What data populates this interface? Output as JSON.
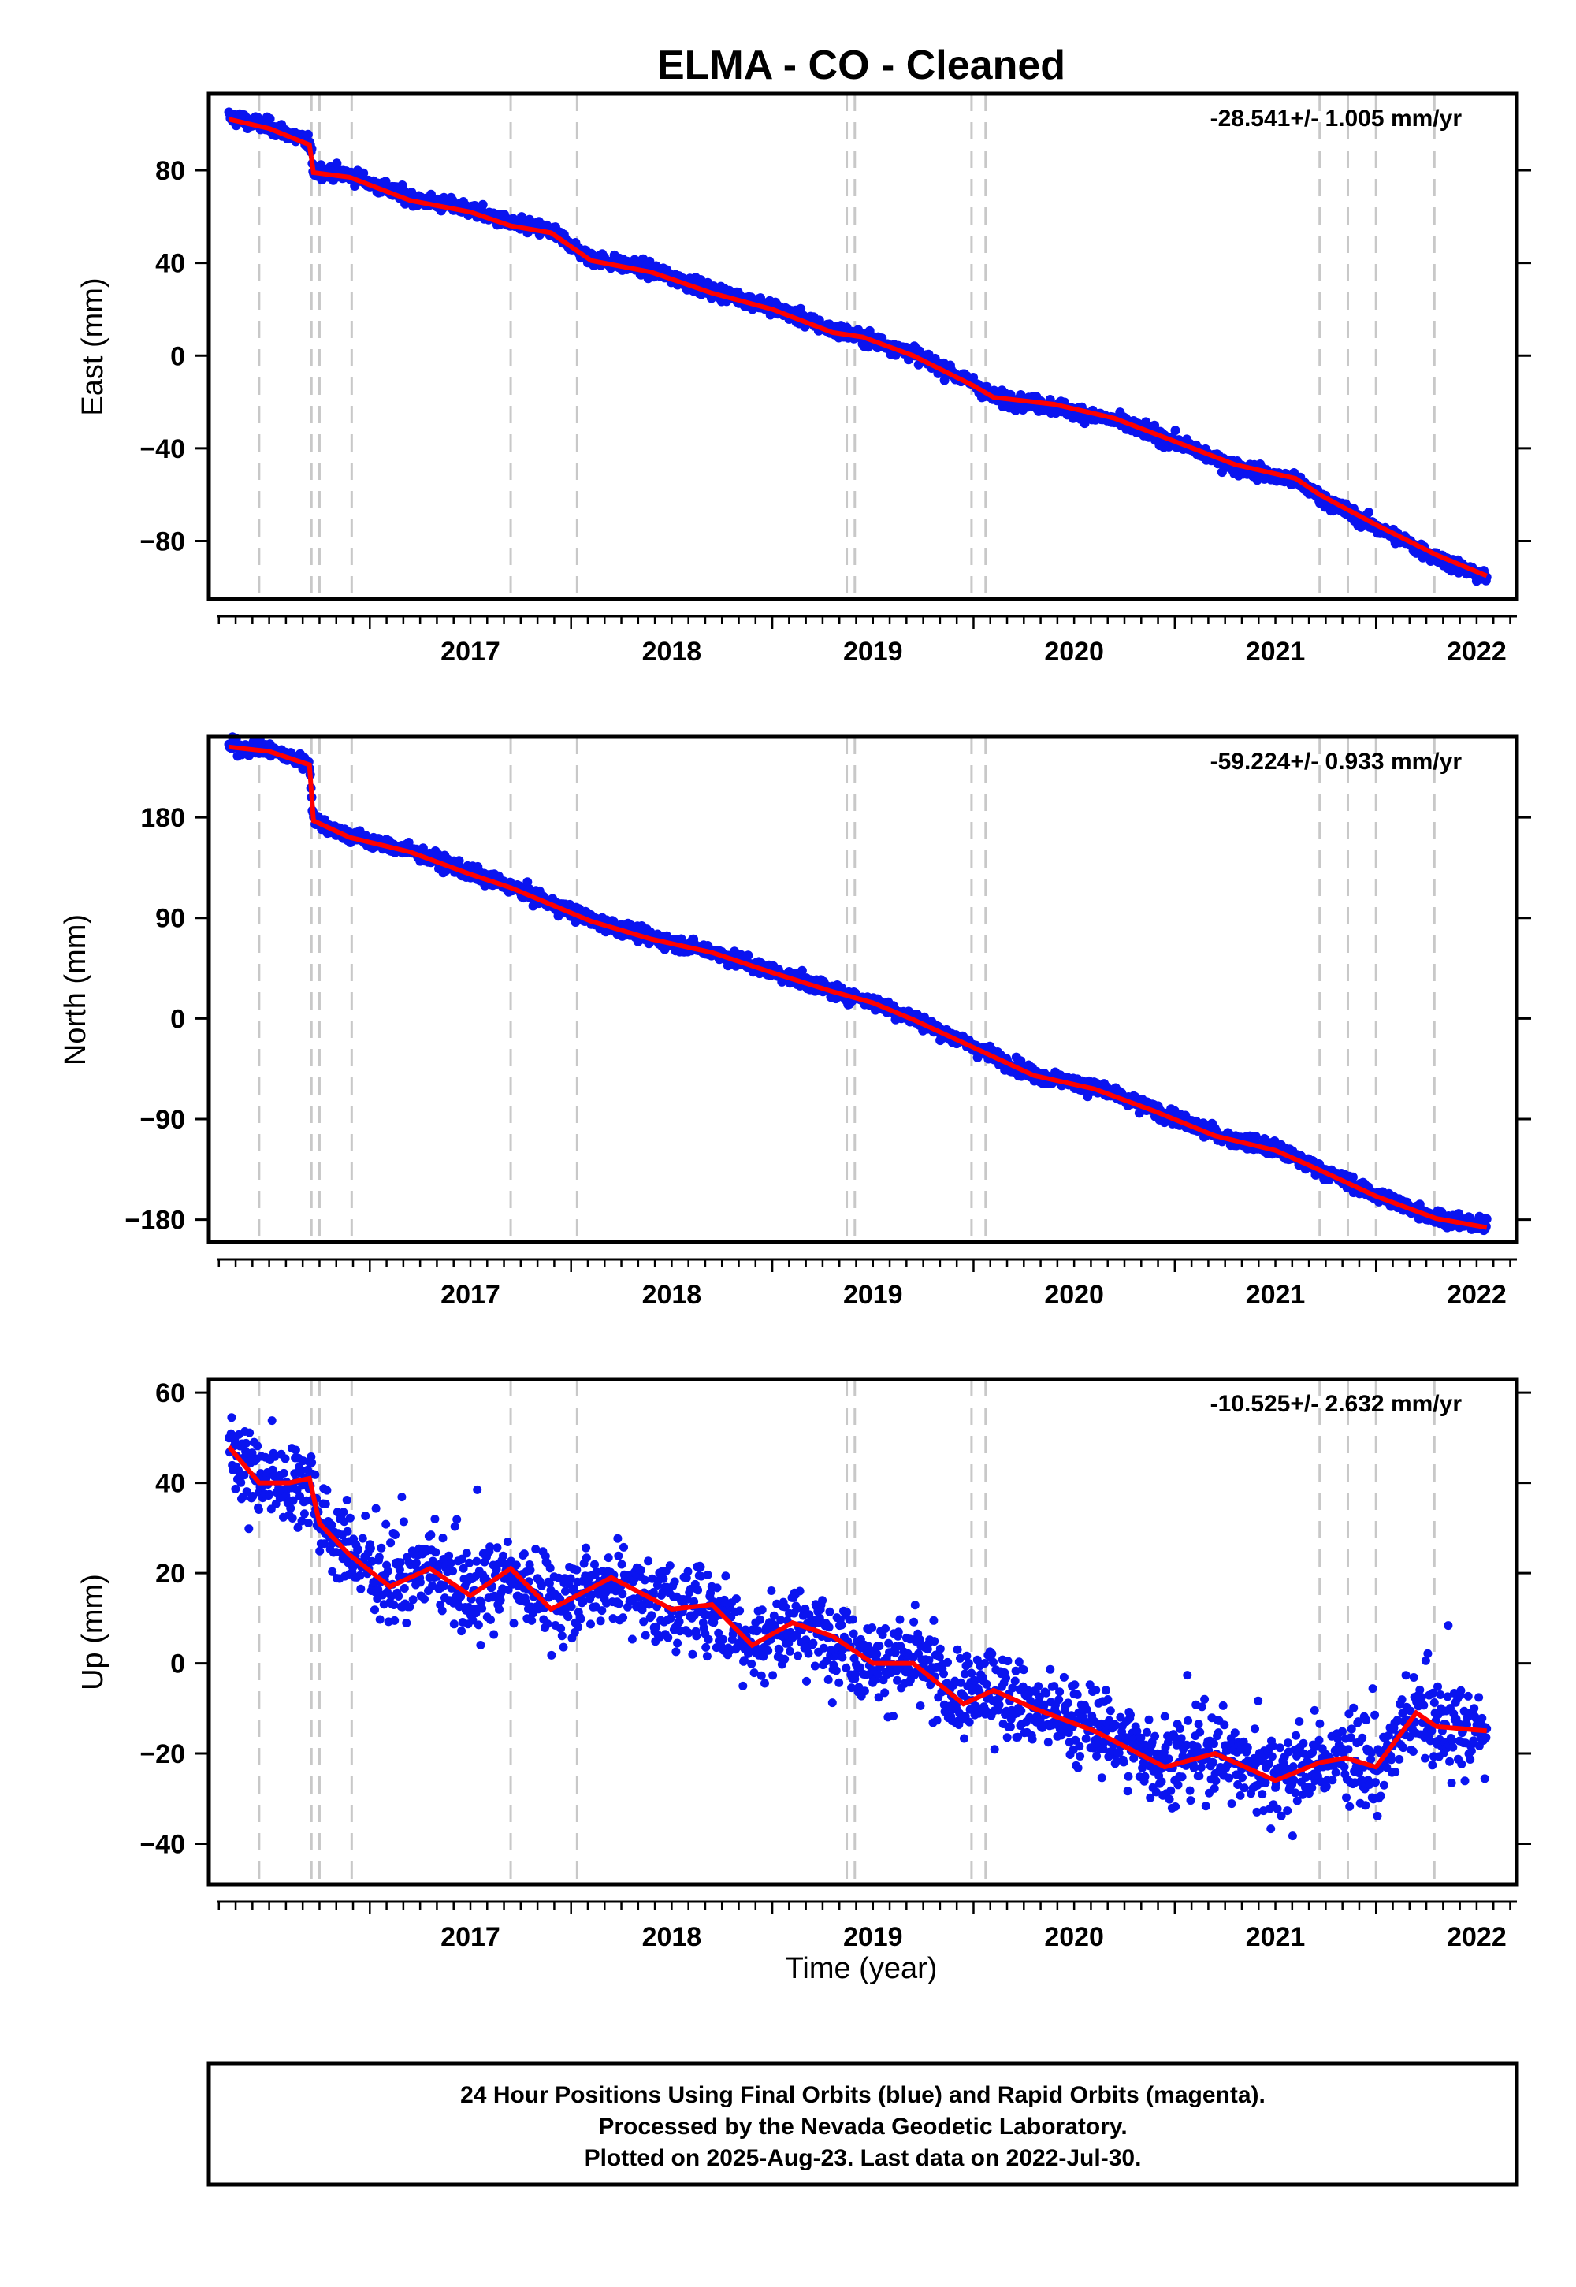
{
  "title": "ELMA  - CO - Cleaned",
  "chart_data": {
    "type": "scatter",
    "x_ticks": [
      2017,
      2018,
      2019,
      2020,
      2021,
      2022
    ],
    "xlim": [
      2016.2,
      2022.7
    ],
    "xlabel": "Time (year)",
    "vertical_markers": [
      2016.45,
      2016.71,
      2016.75,
      2016.91,
      2017.7,
      2018.03,
      2019.37,
      2019.41,
      2019.99,
      2020.06,
      2021.72,
      2021.86,
      2022.0,
      2022.29
    ],
    "colors": {
      "data": "#0a14f0",
      "model": "#ff0000",
      "marker": "#c8c8c8"
    },
    "panels": [
      {
        "ylabel": "East (mm)",
        "ylim": [
          -105,
          113
        ],
        "yticks": [
          80,
          40,
          0,
          -40,
          -80
        ],
        "rate": "-28.541+/- 1.005 mm/yr",
        "series": [
          {
            "name": "24 Hour Positions",
            "x": [
              2016.3,
              2016.5,
              2016.7,
              2016.72,
              2016.9,
              2017.2,
              2017.5,
              2017.7,
              2017.9,
              2018.1,
              2018.4,
              2018.7,
              2019.0,
              2019.3,
              2019.45,
              2019.7,
              2020.0,
              2020.1,
              2020.4,
              2020.7,
              2021.0,
              2021.3,
              2021.6,
              2021.72,
              2022.0,
              2022.3,
              2022.55
            ],
            "y": [
              103,
              99,
              92,
              80,
              78,
              68,
              63,
              57,
              54,
              42,
              37,
              28,
              21,
              11,
              8,
              1,
              -12,
              -18,
              -22,
              -28,
              -37,
              -48,
              -54,
              -61,
              -74,
              -87,
              -96
            ]
          },
          {
            "name": "model",
            "x": [
              2016.3,
              2016.5,
              2016.7,
              2016.72,
              2016.9,
              2017.2,
              2017.5,
              2017.7,
              2017.9,
              2018.1,
              2018.4,
              2018.7,
              2019.0,
              2019.3,
              2019.45,
              2019.7,
              2020.0,
              2020.1,
              2020.4,
              2020.7,
              2021.0,
              2021.3,
              2021.6,
              2021.72,
              2022.0,
              2022.3,
              2022.55
            ],
            "y": [
              102,
              98,
              91,
              79,
              77,
              67,
              62,
              56,
              53,
              41,
              36,
              27,
              20,
              10,
              8,
              0,
              -13,
              -18,
              -21,
              -27,
              -37,
              -47,
              -53,
              -60,
              -73,
              -86,
              -95
            ]
          }
        ]
      },
      {
        "ylabel": "North (mm)",
        "ylim": [
          -200,
          252
        ],
        "yticks": [
          180,
          90,
          0,
          -90,
          -180
        ],
        "rate": "-59.224+/- 0.933 mm/yr",
        "series": [
          {
            "name": "24 Hour Positions",
            "x": [
              2016.3,
              2016.5,
              2016.7,
              2016.72,
              2016.9,
              2017.2,
              2017.5,
              2017.7,
              2017.9,
              2018.1,
              2018.4,
              2018.7,
              2019.0,
              2019.3,
              2019.5,
              2019.7,
              2020.0,
              2020.3,
              2020.6,
              2020.9,
              2021.2,
              2021.5,
              2021.7,
              2022.0,
              2022.3,
              2022.55
            ],
            "y": [
              244,
              240,
              228,
              178,
              163,
              150,
              130,
              118,
              103,
              88,
              72,
              60,
              42,
              25,
              15,
              0,
              -25,
              -50,
              -62,
              -82,
              -104,
              -117,
              -133,
              -158,
              -178,
              -186
            ]
          },
          {
            "name": "model",
            "x": [
              2016.3,
              2016.5,
              2016.7,
              2016.72,
              2016.9,
              2017.2,
              2017.5,
              2017.7,
              2017.9,
              2018.1,
              2018.4,
              2018.7,
              2019.0,
              2019.3,
              2019.5,
              2019.7,
              2020.0,
              2020.3,
              2020.6,
              2020.9,
              2021.2,
              2021.5,
              2021.7,
              2022.0,
              2022.3,
              2022.55
            ],
            "y": [
              243,
              239,
              227,
              177,
              162,
              149,
              129,
              117,
              102,
              87,
              71,
              59,
              41,
              24,
              14,
              -1,
              -26,
              -51,
              -63,
              -83,
              -105,
              -118,
              -134,
              -159,
              -179,
              -187
            ]
          }
        ]
      },
      {
        "ylabel": "Up (mm)",
        "ylim": [
          -49,
          63
        ],
        "yticks": [
          60,
          40,
          20,
          0,
          -20,
          -40
        ],
        "rate": "-10.525+/- 2.632 mm/yr",
        "series": [
          {
            "name": "24 Hour Positions",
            "x": [
              2016.3,
              2016.45,
              2016.6,
              2016.7,
              2016.75,
              2016.9,
              2017.1,
              2017.3,
              2017.5,
              2017.7,
              2017.9,
              2018.2,
              2018.5,
              2018.7,
              2018.9,
              2019.1,
              2019.3,
              2019.5,
              2019.7,
              2019.95,
              2020.1,
              2020.3,
              2020.6,
              2020.95,
              2021.2,
              2021.5,
              2021.72,
              2021.85,
              2022.0,
              2022.2,
              2022.3,
              2022.55
            ],
            "y": [
              49,
              41,
              40,
              41,
              32,
              25,
              18,
              21,
              15,
              20,
              13,
              19,
              12,
              13,
              5,
              9,
              6,
              1,
              0,
              -8,
              -5,
              -10,
              -14,
              -22,
              -19,
              -25,
              -22,
              -20,
              -24,
              -11,
              -14,
              -15
            ]
          },
          {
            "name": "model",
            "x": [
              2016.3,
              2016.45,
              2016.6,
              2016.7,
              2016.75,
              2016.9,
              2017.1,
              2017.3,
              2017.5,
              2017.7,
              2017.9,
              2018.2,
              2018.5,
              2018.7,
              2018.9,
              2019.1,
              2019.3,
              2019.5,
              2019.7,
              2019.95,
              2020.1,
              2020.3,
              2020.6,
              2020.95,
              2021.2,
              2021.5,
              2021.72,
              2021.85,
              2022.0,
              2022.2,
              2022.3,
              2022.55
            ],
            "y": [
              48,
              40,
              40,
              41,
              31,
              24,
              17,
              21,
              15,
              21,
              12,
              19,
              12,
              13,
              4,
              9,
              6,
              0,
              0,
              -9,
              -6,
              -10,
              -15,
              -23,
              -20,
              -26,
              -22,
              -21,
              -23,
              -11,
              -14,
              -15
            ]
          }
        ]
      }
    ]
  },
  "footer": {
    "line1": "24 Hour Positions Using Final Orbits (blue) and Rapid Orbits (magenta).",
    "line2": "Processed by the Nevada Geodetic Laboratory.",
    "line3": "Plotted on 2025-Aug-23. Last data on 2022-Jul-30."
  }
}
